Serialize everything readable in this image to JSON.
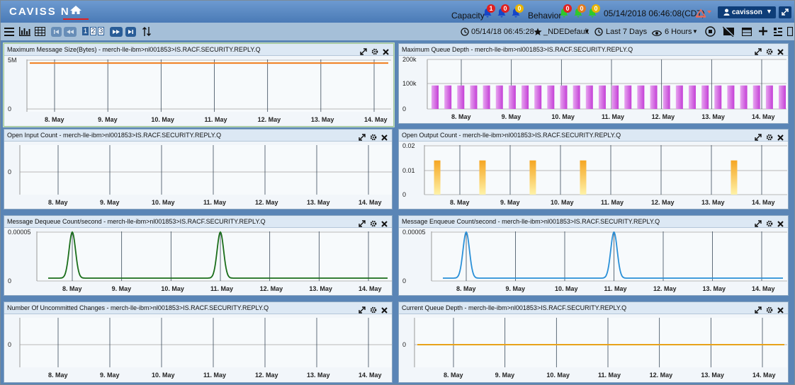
{
  "header": {
    "logo": "CAVISS N",
    "capacity_label": "Capacity",
    "behavior_label": "Behavior",
    "capacity_alerts": [
      {
        "count": "1",
        "color": "#e02020"
      },
      {
        "count": "0",
        "color": "#e02020"
      },
      {
        "count": "0",
        "color": "#e8b400"
      }
    ],
    "behavior_alerts": [
      {
        "count": "0",
        "color": "#e02020"
      },
      {
        "count": "0",
        "color": "#e07a20"
      },
      {
        "count": "0",
        "color": "#e8b400"
      }
    ],
    "datetime": "05/14/2018 06:46:08(CDT)",
    "user": "cavisson"
  },
  "toolbar": {
    "pages": [
      "1",
      "2",
      "3"
    ],
    "active_page": "1",
    "timestamp": "05/14/18 06:45:28",
    "favorite": "_NDEDefault",
    "range": "Last 7 Days",
    "view": "6 Hours"
  },
  "colors": {
    "orange_line": "#f07c1c",
    "magenta_bar": "#c43fd6",
    "amber_bar": "#f5a623",
    "green_line": "#1a6e1a",
    "blue_line": "#2a90d8",
    "gold_line": "#e8a21a"
  },
  "x_ticks": [
    "8. May",
    "9. May",
    "10. May",
    "11. May",
    "12. May",
    "13. May",
    "14. May"
  ],
  "panels": [
    {
      "title": "Maximum Message Size(Bytes) - merch-lle-ibm>nl001853>IS.RACF.SECURITY.REPLY.Q"
    },
    {
      "title": "Maximum Queue Depth - merch-lle-ibm>nl001853>IS.RACF.SECURITY.REPLY.Q"
    },
    {
      "title": "Open Input Count - merch-lle-ibm>nl001853>IS.RACF.SECURITY.REPLY.Q"
    },
    {
      "title": "Open Output Count - merch-lle-ibm>nl001853>IS.RACF.SECURITY.REPLY.Q"
    },
    {
      "title": "Message Dequeue Count/second - merch-lle-ibm>nl001853>IS.RACF.SECURITY.REPLY.Q"
    },
    {
      "title": "Message Enqueue Count/second - merch-lle-ibm>nl001853>IS.RACF.SECURITY.REPLY.Q"
    },
    {
      "title": "Number Of Uncommitted Changes - merch-lle-ibm>nl001853>IS.RACF.SECURITY.REPLY.Q"
    },
    {
      "title": "Current Queue Depth - merch-lle-ibm>nl001853>IS.RACF.SECURITY.REPLY.Q"
    }
  ],
  "chart_data": [
    {
      "type": "line",
      "x": [
        "8. May",
        "14. May"
      ],
      "series": [
        {
          "values": [
            4700000,
            4700000
          ]
        }
      ],
      "ytick_labels": [
        "5M",
        "0"
      ],
      "ylim": [
        0,
        5000000
      ],
      "grid": true
    },
    {
      "type": "bar",
      "series": [
        {
          "values": [
            95000,
            95000,
            95000,
            95000,
            95000,
            95000,
            95000,
            95000,
            95000,
            95000,
            95000,
            95000,
            95000,
            95000,
            95000,
            95000,
            95000,
            95000,
            95000,
            95000,
            95000,
            95000,
            95000,
            95000,
            95000,
            95000,
            95000,
            95000
          ]
        }
      ],
      "x_range": [
        "7. May",
        "14. May"
      ],
      "ytick_labels": [
        "200k",
        "100k",
        "0"
      ],
      "ylim": [
        0,
        200000
      ],
      "grid": true
    },
    {
      "type": "line",
      "series": [],
      "ytick_labels": [
        "0"
      ],
      "grid": true
    },
    {
      "type": "bar",
      "series": [
        {
          "values": [
            0.014,
            0.014,
            0.014,
            0.014,
            0.014
          ]
        }
      ],
      "x": [
        7.55,
        8.45,
        9.45,
        10.45,
        13.45
      ],
      "ytick_labels": [
        "0.02",
        "0.01",
        "0"
      ],
      "ylim": [
        0,
        0.02
      ],
      "grid": true
    },
    {
      "type": "line",
      "series": [
        {
          "peaks": [
            "8. May",
            "11. May"
          ],
          "peak_value": 5e-05
        }
      ],
      "ytick_labels": [
        "0.00005",
        "0"
      ],
      "ylim": [
        0,
        5e-05
      ],
      "grid": true
    },
    {
      "type": "line",
      "series": [
        {
          "peaks": [
            "8. May",
            "11. May"
          ],
          "peak_value": 5e-05
        }
      ],
      "ytick_labels": [
        "0.00005",
        "0"
      ],
      "ylim": [
        0,
        5e-05
      ],
      "grid": true
    },
    {
      "type": "line",
      "series": [],
      "ytick_labels": [
        "0"
      ],
      "grid": true
    },
    {
      "type": "line",
      "series": [
        {
          "values": [
            0,
            0
          ]
        }
      ],
      "ytick_labels": [
        "0"
      ],
      "ylim": [
        -1,
        1
      ],
      "grid": true
    }
  ]
}
